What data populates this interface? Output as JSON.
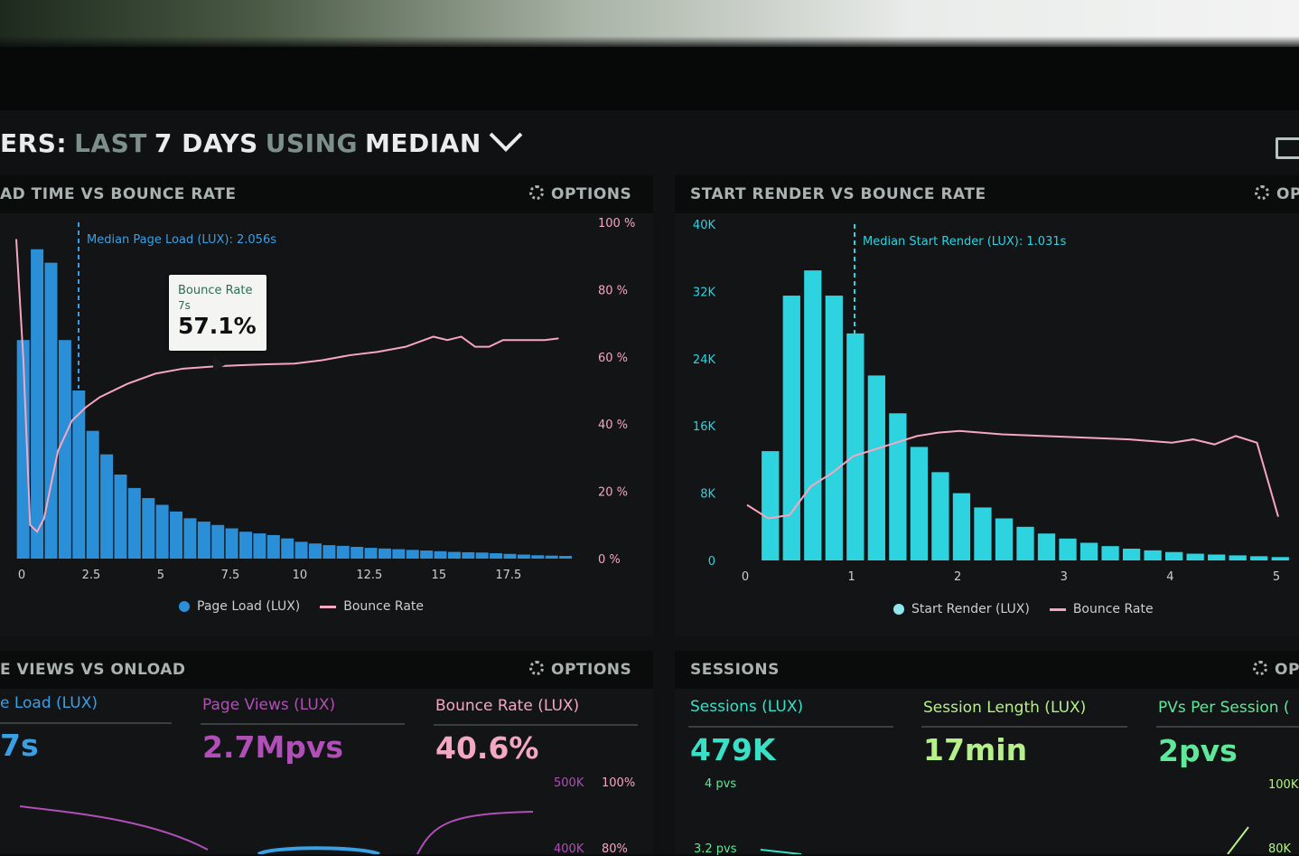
{
  "header": {
    "part1": "ERS:",
    "part2": "LAST",
    "part3": "7 DAYS",
    "part4": "USING",
    "part5": "MEDIAN"
  },
  "options_label": "OPTIONS",
  "panel1": {
    "title": "AD TIME VS BOUNCE RATE",
    "median_label": "Median Page Load (LUX): 2.056s",
    "tooltip": {
      "title": "Bounce Rate",
      "x": "7s",
      "value": "57.1%"
    },
    "legend": {
      "series1": "Page Load (LUX)",
      "series2": "Bounce Rate"
    }
  },
  "panel2": {
    "title": "START RENDER VS BOUNCE RATE",
    "options_label": "OP",
    "median_label": "Median Start Render (LUX): 1.031s",
    "legend": {
      "series1": "Start Render (LUX)",
      "series2": "Bounce Rate"
    }
  },
  "panel3": {
    "title": "E VIEWS VS ONLOAD",
    "metrics": [
      {
        "label": "e Load (LUX)",
        "value": "7s",
        "color": "#3aa0e6"
      },
      {
        "label": "Page Views (LUX)",
        "value": "2.7Mpvs",
        "color": "#b04fb8"
      },
      {
        "label": "Bounce Rate (LUX)",
        "value": "40.6%",
        "color": "#f4a7c0"
      }
    ],
    "axis_left": [
      "500K",
      "400K"
    ],
    "axis_right": [
      "100%",
      "80%"
    ]
  },
  "panel4": {
    "title": "SESSIONS",
    "options_label": "OP",
    "metrics": [
      {
        "label": "Sessions (LUX)",
        "value": "479K",
        "color": "#38e0c8"
      },
      {
        "label": "Session Length (LUX)",
        "value": "17min",
        "color": "#b6f08a"
      },
      {
        "label": "PVs Per Session (",
        "value": "2pvs",
        "color": "#5fe89a"
      }
    ],
    "axis_left": [
      "4 pvs",
      "3.2 pvs"
    ],
    "axis_right": [
      "100K",
      "80K"
    ]
  },
  "chart_data": [
    {
      "type": "bar",
      "title": "AD TIME VS BOUNCE RATE",
      "xlabel": "",
      "ylabel": "",
      "x_ticks": [
        "0",
        "2.5",
        "5",
        "7.5",
        "10",
        "12.5",
        "15",
        "17.5"
      ],
      "y_right_ticks": [
        "100 %",
        "80 %",
        "60 %",
        "40 %",
        "20 %",
        "0 %"
      ],
      "xlim": [
        0,
        20
      ],
      "y2lim": [
        0,
        100
      ],
      "legend": "bottom",
      "series": [
        {
          "name": "Page Load (LUX)",
          "type": "bar",
          "color": "#2b8fd8",
          "x": [
            0.25,
            0.75,
            1.25,
            1.75,
            2.25,
            2.75,
            3.25,
            3.75,
            4.25,
            4.75,
            5.25,
            5.75,
            6.25,
            6.75,
            7.25,
            7.75,
            8.25,
            8.75,
            9.25,
            9.75,
            10.25,
            10.75,
            11.25,
            11.75,
            12.25,
            12.75,
            13.25,
            13.75,
            14.25,
            14.75,
            15.25,
            15.75,
            16.25,
            16.75,
            17.25,
            17.75,
            18.25,
            18.75,
            19.25,
            19.75
          ],
          "values": [
            65,
            92,
            88,
            65,
            50,
            38,
            31,
            25,
            21,
            18,
            16,
            14,
            12,
            11,
            10,
            9,
            8,
            7.5,
            7,
            6,
            5,
            4.5,
            4,
            3.8,
            3.5,
            3.2,
            3,
            2.8,
            2.6,
            2.4,
            2.2,
            2,
            1.9,
            1.8,
            1.6,
            1.4,
            1.2,
            1,
            0.9,
            0.8
          ]
        },
        {
          "name": "Bounce Rate",
          "type": "line",
          "color": "#f7a6bf",
          "x": [
            0,
            0.25,
            0.5,
            0.75,
            1,
            1.5,
            2,
            2.5,
            3,
            4,
            5,
            6,
            7,
            8,
            9,
            10,
            11,
            12,
            13,
            14,
            15,
            15.5,
            16,
            16.5,
            17,
            17.5,
            18,
            18.5,
            19,
            19.5
          ],
          "values": [
            95,
            60,
            10,
            8,
            12,
            32,
            41,
            45,
            48,
            52,
            55,
            56.5,
            57.1,
            57.5,
            57.8,
            58,
            59,
            60.5,
            61.5,
            63,
            66,
            65,
            66,
            63,
            63,
            65,
            65,
            65,
            65,
            65.5
          ]
        }
      ]
    },
    {
      "type": "bar",
      "title": "START RENDER VS BOUNCE RATE",
      "xlabel": "",
      "ylabel": "",
      "x_ticks": [
        "0",
        "1",
        "2",
        "3",
        "4",
        "5"
      ],
      "y_left_ticks": [
        "40K",
        "32K",
        "24K",
        "16K",
        "8K",
        "0"
      ],
      "xlim": [
        0,
        5
      ],
      "ylim": [
        0,
        40000
      ],
      "legend": "bottom",
      "series": [
        {
          "name": "Start Render (LUX)",
          "type": "bar",
          "color": "#2ed3e0",
          "x": [
            0.1,
            0.3,
            0.5,
            0.7,
            0.9,
            1.1,
            1.3,
            1.5,
            1.7,
            1.9,
            2.1,
            2.3,
            2.5,
            2.7,
            2.9,
            3.1,
            3.3,
            3.5,
            3.7,
            3.9,
            4.1,
            4.3,
            4.5,
            4.7,
            4.9
          ],
          "values": [
            13000,
            31500,
            34500,
            31500,
            27000,
            22000,
            17500,
            13500,
            10500,
            8000,
            6300,
            5000,
            4000,
            3200,
            2600,
            2100,
            1700,
            1400,
            1200,
            1000,
            800,
            700,
            600,
            500,
            400
          ]
        },
        {
          "name": "Bounce Rate",
          "type": "line",
          "color": "#f7a6bf",
          "x": [
            0,
            0.2,
            0.4,
            0.6,
            0.8,
            1,
            1.2,
            1.4,
            1.6,
            1.8,
            2,
            2.4,
            2.8,
            3.2,
            3.6,
            4,
            4.2,
            4.4,
            4.6,
            4.8,
            5
          ],
          "values": [
            16.5,
            12.5,
            13.5,
            22,
            26,
            31,
            33,
            35,
            37,
            38,
            38.5,
            37.5,
            37,
            36.5,
            36,
            35,
            36,
            34.5,
            37,
            35,
            13
          ]
        }
      ]
    }
  ]
}
